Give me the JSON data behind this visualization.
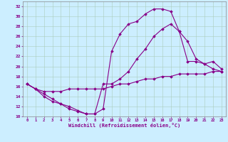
{
  "xlabel": "Windchill (Refroidissement éolien,°C)",
  "bg_color": "#cceeff",
  "grid_color": "#aaccbb",
  "line_color": "#880088",
  "xlim": [
    -0.5,
    23.5
  ],
  "ylim": [
    10,
    33
  ],
  "xticks": [
    0,
    1,
    2,
    3,
    4,
    5,
    6,
    7,
    8,
    9,
    10,
    11,
    12,
    13,
    14,
    15,
    16,
    17,
    18,
    19,
    20,
    21,
    22,
    23
  ],
  "yticks": [
    10,
    12,
    14,
    16,
    18,
    20,
    22,
    24,
    26,
    28,
    30,
    32
  ],
  "series1_x": [
    0,
    1,
    2,
    3,
    4,
    5,
    6,
    7,
    8,
    9,
    10,
    11,
    12,
    13,
    14,
    15,
    16,
    17,
    18,
    19,
    20,
    21,
    22,
    23
  ],
  "series1_y": [
    16.5,
    15.5,
    14.0,
    13.0,
    12.5,
    11.5,
    11.0,
    10.5,
    10.5,
    11.5,
    23.0,
    26.5,
    28.5,
    29.0,
    30.5,
    31.5,
    31.5,
    31.0,
    27.0,
    21.0,
    21.0,
    20.5,
    19.5,
    19.0
  ],
  "series2_x": [
    0,
    1,
    2,
    3,
    4,
    5,
    6,
    7,
    8,
    9,
    10,
    11,
    12,
    13,
    14,
    15,
    16,
    17,
    18,
    19,
    20,
    21,
    22,
    23
  ],
  "series2_y": [
    16.5,
    15.5,
    14.5,
    13.5,
    12.5,
    12.0,
    11.2,
    10.5,
    10.5,
    16.5,
    16.5,
    17.5,
    19.0,
    21.5,
    23.5,
    26.0,
    27.5,
    28.5,
    27.0,
    25.0,
    21.5,
    20.5,
    21.0,
    19.5
  ],
  "series3_x": [
    0,
    1,
    2,
    3,
    4,
    5,
    6,
    7,
    8,
    9,
    10,
    11,
    12,
    13,
    14,
    15,
    16,
    17,
    18,
    19,
    20,
    21,
    22,
    23
  ],
  "series3_y": [
    16.5,
    15.5,
    15.0,
    15.0,
    15.0,
    15.5,
    15.5,
    15.5,
    15.5,
    15.5,
    16.0,
    16.5,
    16.5,
    17.0,
    17.5,
    17.5,
    18.0,
    18.0,
    18.5,
    18.5,
    18.5,
    18.5,
    19.0,
    19.0
  ]
}
